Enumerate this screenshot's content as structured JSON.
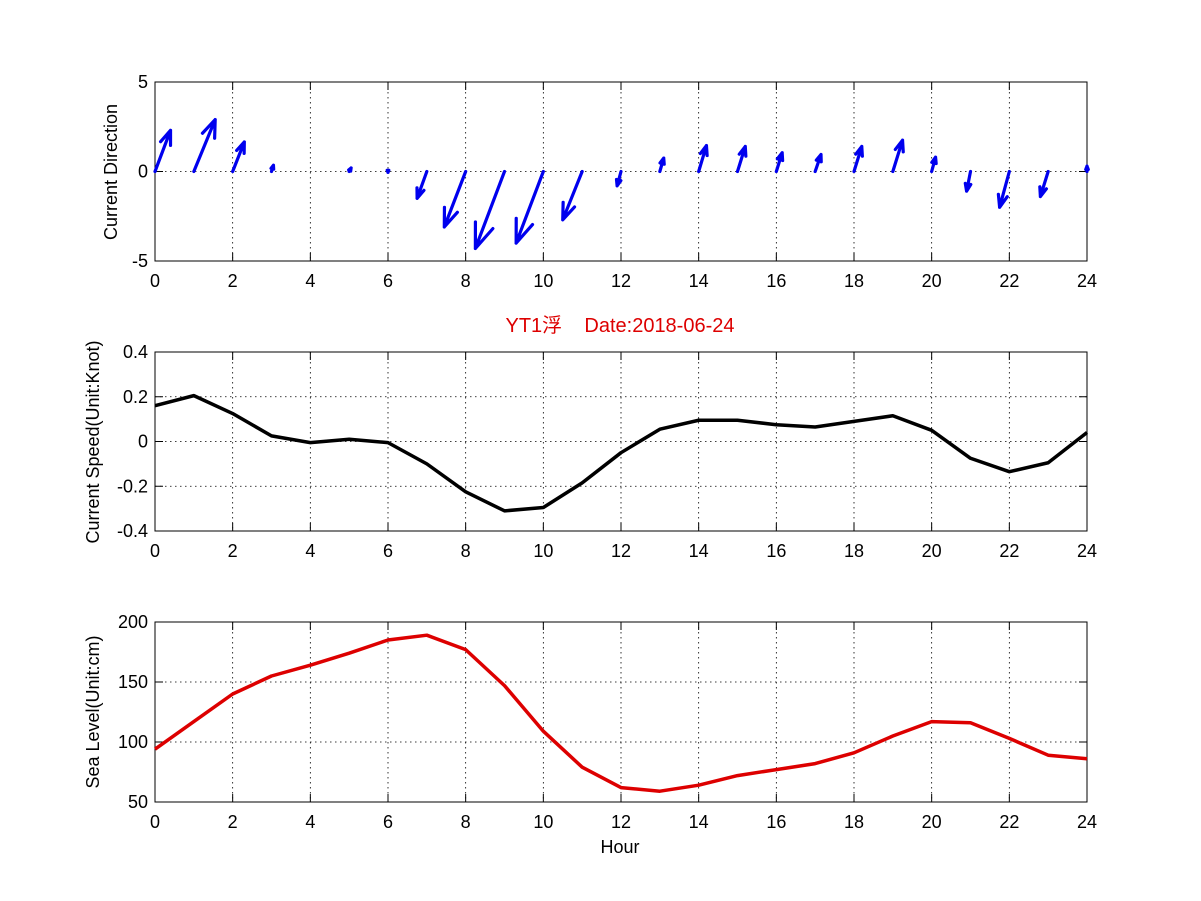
{
  "chart_data": [
    {
      "type": "quiver",
      "ylabel": "Current Direction",
      "xlim": [
        0,
        24
      ],
      "ylim": [
        -5,
        5
      ],
      "x_ticks": [
        0,
        2,
        4,
        6,
        8,
        10,
        12,
        14,
        16,
        18,
        20,
        22,
        24
      ],
      "y_ticks": [
        5,
        0,
        -5
      ],
      "grid": true,
      "color": "#0000ee",
      "vectors": [
        {
          "x": 0,
          "u": 0.4,
          "v": 2.3
        },
        {
          "x": 1,
          "u": 0.55,
          "v": 2.9
        },
        {
          "x": 2,
          "u": 0.3,
          "v": 1.65
        },
        {
          "x": 3,
          "u": 0.05,
          "v": 0.35
        },
        {
          "x": 4,
          "u": 0.0,
          "v": 0.0
        },
        {
          "x": 5,
          "u": 0.05,
          "v": 0.2
        },
        {
          "x": 6,
          "u": 0.0,
          "v": -0.05
        },
        {
          "x": 7,
          "u": -0.25,
          "v": -1.5
        },
        {
          "x": 8,
          "u": -0.55,
          "v": -3.1
        },
        {
          "x": 9,
          "u": -0.75,
          "v": -4.3
        },
        {
          "x": 10,
          "u": -0.7,
          "v": -4.0
        },
        {
          "x": 11,
          "u": -0.5,
          "v": -2.7
        },
        {
          "x": 12,
          "u": -0.1,
          "v": -0.8
        },
        {
          "x": 13,
          "u": 0.1,
          "v": 0.75
        },
        {
          "x": 14,
          "u": 0.2,
          "v": 1.45
        },
        {
          "x": 15,
          "u": 0.2,
          "v": 1.4
        },
        {
          "x": 16,
          "u": 0.15,
          "v": 1.05
        },
        {
          "x": 17,
          "u": 0.15,
          "v": 0.95
        },
        {
          "x": 18,
          "u": 0.2,
          "v": 1.4
        },
        {
          "x": 19,
          "u": 0.25,
          "v": 1.75
        },
        {
          "x": 20,
          "u": 0.1,
          "v": 0.8
        },
        {
          "x": 21,
          "u": -0.1,
          "v": -1.1
        },
        {
          "x": 22,
          "u": -0.25,
          "v": -2.0
        },
        {
          "x": 23,
          "u": -0.2,
          "v": -1.4
        },
        {
          "x": 24,
          "u": 0.0,
          "v": 0.3
        }
      ]
    },
    {
      "type": "line",
      "title": "YT1浮    Date:2018-06-24",
      "title_color": "#dd0000",
      "ylabel": "Current Speed(Unit:Knot)",
      "xlim": [
        0,
        24
      ],
      "ylim": [
        -0.4,
        0.4
      ],
      "x_ticks": [
        0,
        2,
        4,
        6,
        8,
        10,
        12,
        14,
        16,
        18,
        20,
        22,
        24
      ],
      "y_ticks": [
        0.4,
        0.2,
        0,
        -0.2,
        -0.4
      ],
      "grid": true,
      "color": "#000000",
      "x": [
        0,
        1,
        2,
        3,
        4,
        5,
        6,
        7,
        8,
        9,
        10,
        11,
        12,
        13,
        14,
        15,
        16,
        17,
        18,
        19,
        20,
        21,
        22,
        23,
        24
      ],
      "y": [
        0.16,
        0.205,
        0.125,
        0.025,
        -0.005,
        0.01,
        -0.005,
        -0.1,
        -0.225,
        -0.31,
        -0.295,
        -0.185,
        -0.05,
        0.055,
        0.095,
        0.095,
        0.075,
        0.065,
        0.09,
        0.115,
        0.05,
        -0.075,
        -0.135,
        -0.095,
        0.04
      ]
    },
    {
      "type": "line",
      "xlabel": "Hour",
      "ylabel": "Sea Level(Unit:cm)",
      "xlim": [
        0,
        24
      ],
      "ylim": [
        50,
        200
      ],
      "x_ticks": [
        0,
        2,
        4,
        6,
        8,
        10,
        12,
        14,
        16,
        18,
        20,
        22,
        24
      ],
      "y_ticks": [
        200,
        150,
        100,
        50
      ],
      "grid": true,
      "color": "#dd0000",
      "x": [
        0,
        1,
        2,
        3,
        4,
        5,
        6,
        7,
        8,
        9,
        10,
        11,
        12,
        13,
        14,
        15,
        16,
        17,
        18,
        19,
        20,
        21,
        22,
        23,
        24
      ],
      "y": [
        94,
        117,
        140,
        155,
        164,
        174,
        185,
        189,
        177,
        147,
        109,
        79,
        62,
        59,
        64,
        72,
        77,
        82,
        91,
        105,
        117,
        116,
        103,
        89,
        86
      ]
    }
  ]
}
